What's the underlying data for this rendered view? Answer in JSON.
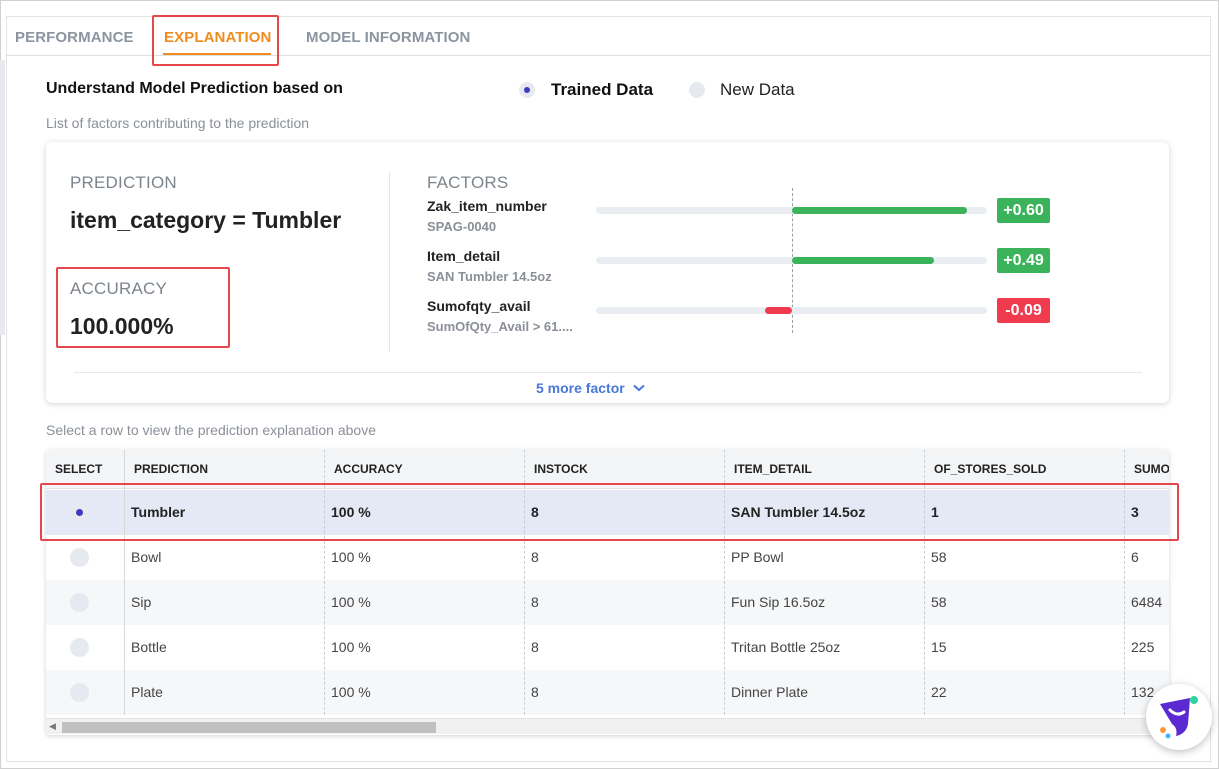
{
  "tabs": [
    {
      "label": "PERFORMANCE",
      "active": false
    },
    {
      "label": "EXPLANATION",
      "active": true
    },
    {
      "label": "MODEL INFORMATION",
      "active": false
    }
  ],
  "header": {
    "title": "Understand Model Prediction based on",
    "subtitle": "List of factors contributing to the prediction"
  },
  "data_source": {
    "options": [
      "Trained Data",
      "New Data"
    ],
    "selected": "Trained Data"
  },
  "prediction_card": {
    "prediction_label": "PREDICTION",
    "prediction_value": "item_category = Tumbler",
    "accuracy_label": "ACCURACY",
    "accuracy_value": "100.000%",
    "factors_label": "FACTORS",
    "factors": [
      {
        "name": "Zak_item_number",
        "value": "SPAG-0040",
        "impact": 0.6,
        "impact_label": "+0.60"
      },
      {
        "name": "Item_detail",
        "value": "SAN Tumbler 14.5oz",
        "impact": 0.49,
        "impact_label": "+0.49"
      },
      {
        "name": "Sumofqty_avail",
        "value": "SumOfQty_Avail > 61....",
        "impact": -0.09,
        "impact_label": "-0.09"
      }
    ],
    "more_label": "5 more factor"
  },
  "table": {
    "hint": "Select a row to view the prediction explanation above",
    "columns": [
      "SELECT",
      "PREDICTION",
      "ACCURACY",
      "INSTOCK",
      "ITEM_DETAIL",
      "OF_STORES_SOLD",
      "SUMO"
    ],
    "rows": [
      {
        "selected": true,
        "prediction": "Tumbler",
        "accuracy": "100 %",
        "instock": "8",
        "item_detail": "SAN Tumbler 14.5oz",
        "stores": "1",
        "sumo": "3"
      },
      {
        "selected": false,
        "prediction": "Bowl",
        "accuracy": "100 %",
        "instock": "8",
        "item_detail": "PP Bowl",
        "stores": "58",
        "sumo": "6"
      },
      {
        "selected": false,
        "prediction": "Sip",
        "accuracy": "100 %",
        "instock": "8",
        "item_detail": "Fun Sip 16.5oz",
        "stores": "58",
        "sumo": "6484"
      },
      {
        "selected": false,
        "prediction": "Bottle",
        "accuracy": "100 %",
        "instock": "8",
        "item_detail": "Tritan Bottle 25oz",
        "stores": "15",
        "sumo": "225"
      },
      {
        "selected": false,
        "prediction": "Plate",
        "accuracy": "100 %",
        "instock": "8",
        "item_detail": "Dinner Plate",
        "stores": "22",
        "sumo": "132"
      }
    ]
  },
  "colors": {
    "accent_orange": "#ef8c1d",
    "positive": "#3bb35a",
    "negative": "#f03b4f",
    "highlight": "#e5474b",
    "selected_row": "#e4e9f5",
    "link": "#4a78d6"
  },
  "icons": {
    "more": "chevron-down-icon",
    "chat": "chat-launcher-icon"
  }
}
